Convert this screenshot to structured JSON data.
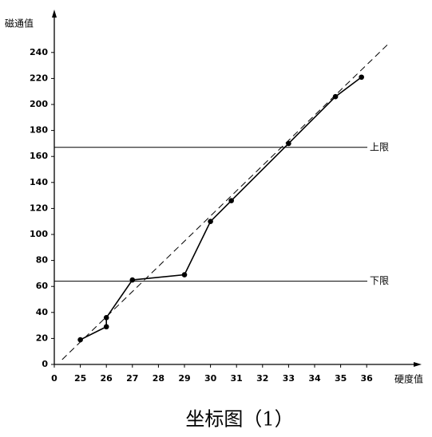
{
  "chart_data": {
    "type": "line",
    "y_label": "磁通值",
    "x_label": "硬度值",
    "xlim": [
      24,
      38
    ],
    "ylim": [
      0,
      270
    ],
    "xticks": [
      {
        "value": 24,
        "label": "0"
      },
      25,
      26,
      27,
      28,
      29,
      30,
      31,
      32,
      33,
      34,
      35,
      36
    ],
    "yticks": [
      0,
      20,
      40,
      60,
      80,
      100,
      120,
      140,
      160,
      180,
      200,
      220,
      240
    ],
    "series": [
      {
        "style": "solid",
        "color": "#000000",
        "markers": true,
        "x": [
          25,
          26,
          26,
          27,
          29,
          30,
          30.8,
          33,
          34.8,
          35.8
        ],
        "values": [
          19,
          29,
          36,
          65,
          69,
          110,
          126,
          170,
          206,
          221
        ]
      },
      {
        "style": "dashed",
        "color": "#000000",
        "markers": false,
        "x": [
          24.3,
          36.8
        ],
        "values": [
          3.7,
          246
        ]
      }
    ],
    "reference_lines": [
      {
        "label": "上限",
        "value": 167
      },
      {
        "label": "下限",
        "value": 64
      }
    ]
  },
  "caption": "坐标图（1）"
}
